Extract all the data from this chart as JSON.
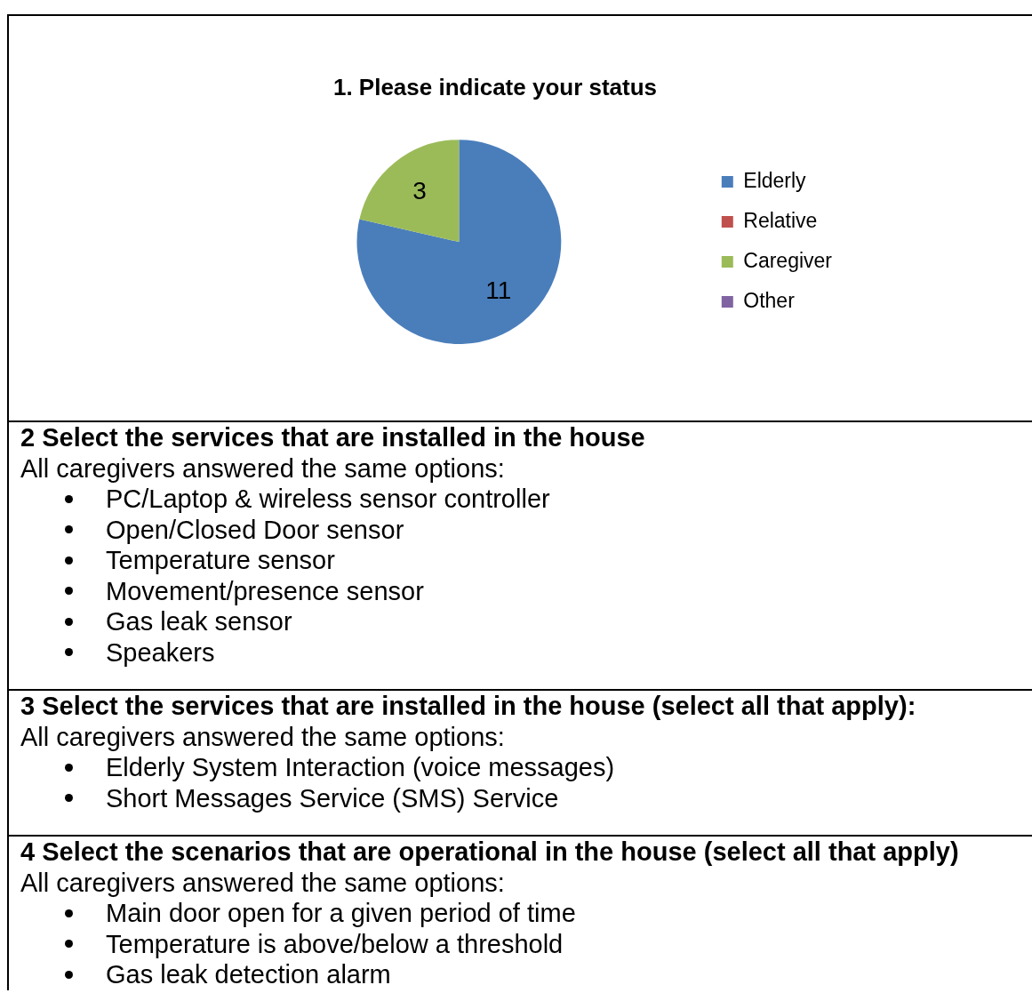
{
  "chart_data": [
    {
      "type": "pie",
      "title": "1. Please indicate your status",
      "categories": [
        "Elderly",
        "Relative",
        "Caregiver",
        "Other"
      ],
      "values": [
        11,
        0,
        3,
        0
      ],
      "colors": [
        "#4a7ebb",
        "#c0504d",
        "#9bbb59",
        "#8064a2"
      ],
      "value_labels": [
        "11",
        null,
        "3",
        null
      ],
      "legend": "right"
    },
    {
      "type": "other",
      "title": "2 Select the services that are installed in the house",
      "subtitle": "All caregivers answered the same options:",
      "annotations": [
        "PC/Laptop & wireless sensor controller",
        "Open/Closed Door sensor",
        "Temperature sensor",
        "Movement/presence sensor",
        "Gas leak sensor",
        "Speakers"
      ]
    },
    {
      "type": "other",
      "title": "3 Select the services that are installed in the house (select all that apply):",
      "subtitle": "All caregivers answered the same options:",
      "annotations": [
        "Elderly System Interaction (voice messages)",
        "Short Messages Service (SMS) Service"
      ]
    },
    {
      "type": "other",
      "title": "4 Select the scenarios that are operational in the house (select all that apply)",
      "subtitle": "All caregivers answered the same options:",
      "annotations": [
        "Main door open for a given period of time",
        "Temperature is above/below a threshold",
        "Gas leak detection alarm"
      ]
    }
  ]
}
